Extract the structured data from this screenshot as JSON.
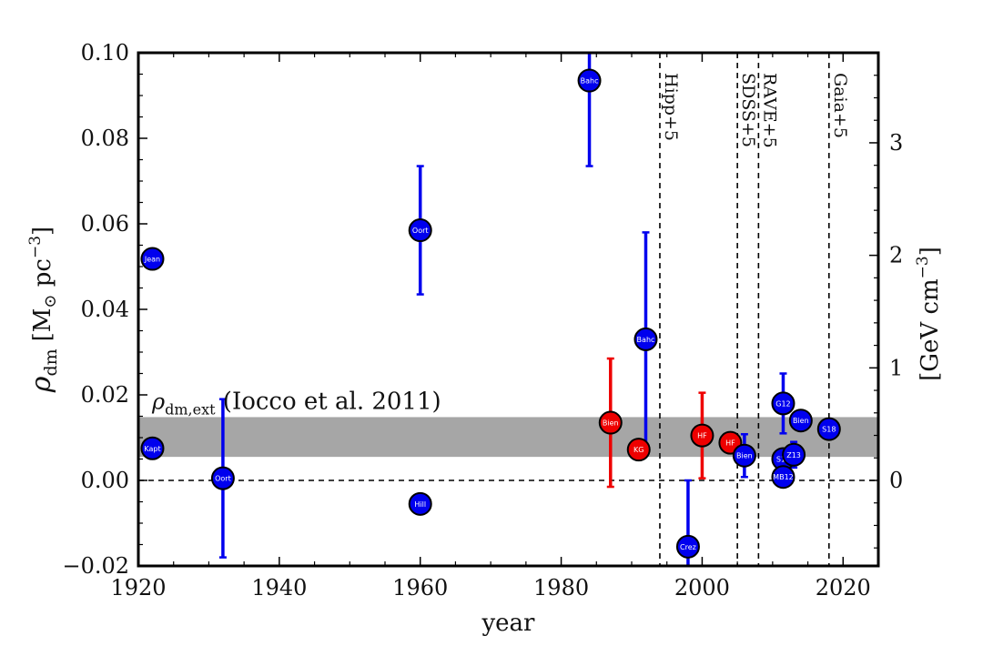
{
  "chart_data": {
    "type": "scatter",
    "x_axis": {
      "label": "year",
      "range": [
        1920,
        2025
      ],
      "ticks": [
        1920,
        1940,
        1960,
        1980,
        2000,
        2020
      ],
      "tick_labels": [
        "1920",
        "1940",
        "1960",
        "1980",
        "2000",
        "2020"
      ]
    },
    "y_axis_left": {
      "label_main": "ρ",
      "label_sub": "dm",
      "label_units": "[M",
      "label_units_sub": "⊙",
      "label_units_tail": " pc",
      "label_units_exp": "−3",
      "label_units_close": "]",
      "range": [
        -0.02,
        0.1
      ],
      "ticks": [
        -0.02,
        0.0,
        0.02,
        0.04,
        0.06,
        0.08,
        0.1
      ],
      "tick_labels": [
        "−0.02",
        "0.00",
        "0.02",
        "0.04",
        "0.06",
        "0.08",
        "0.10"
      ]
    },
    "y_axis_right": {
      "label_main": "[GeV cm",
      "label_exp": "−3",
      "label_close": "]",
      "conversion_per_Msun_pc3": 38.0,
      "ticks": [
        0,
        1,
        2,
        3
      ],
      "tick_labels": [
        "0",
        "1",
        "2",
        "3"
      ]
    },
    "band": {
      "ymin": 0.0055,
      "ymax": 0.0148,
      "label_main": "ρ",
      "label_sub": "dm,ext",
      "label_rest": " (Iocco et al. 2011)",
      "color": "#a6a6a6"
    },
    "zero_line": 0.0,
    "vertical_lines": [
      {
        "x": 1994,
        "label": "Hipp+5"
      },
      {
        "x": 2005,
        "label": "SDSS+5"
      },
      {
        "x": 2008,
        "label": "RAVE+5"
      },
      {
        "x": 2018,
        "label": "Gaia+5"
      }
    ],
    "colors": {
      "blue": "#0000ee",
      "red": "#ee0000"
    },
    "points": [
      {
        "label": "Jean",
        "x": 1922,
        "y": 0.0518,
        "color": "blue"
      },
      {
        "label": "Kapt",
        "x": 1922,
        "y": 0.0075,
        "color": "blue"
      },
      {
        "label": "Oort",
        "x": 1932,
        "y": 0.0005,
        "err_low": 0.0185,
        "err_high": 0.0185,
        "color": "blue"
      },
      {
        "label": "Oort",
        "x": 1960,
        "y": 0.0585,
        "err_low": 0.015,
        "err_high": 0.015,
        "color": "blue"
      },
      {
        "label": "Hill",
        "x": 1960,
        "y": -0.0055,
        "color": "blue"
      },
      {
        "label": "Bahc",
        "x": 1984,
        "y": 0.0935,
        "err_low": 0.02,
        "err_high": 0.02,
        "color": "blue"
      },
      {
        "label": "Bien",
        "x": 1987,
        "y": 0.0135,
        "err_low": 0.015,
        "err_high": 0.015,
        "color": "red"
      },
      {
        "label": "KG",
        "x": 1991,
        "y": 0.0072,
        "color": "red"
      },
      {
        "label": "Bahc",
        "x": 1992,
        "y": 0.033,
        "err_low": 0.025,
        "err_high": 0.025,
        "color": "blue"
      },
      {
        "label": "Crez",
        "x": 1998,
        "y": -0.0155,
        "err_low": 0.0155,
        "err_high": 0.0155,
        "color": "blue"
      },
      {
        "label": "HF",
        "x": 2000,
        "y": 0.0105,
        "err_low": 0.01,
        "err_high": 0.01,
        "color": "red"
      },
      {
        "label": "HF",
        "x": 2004,
        "y": 0.0088,
        "color": "red"
      },
      {
        "label": "Bien",
        "x": 2006,
        "y": 0.0058,
        "err_low": 0.005,
        "err_high": 0.005,
        "color": "blue"
      },
      {
        "label": "G12",
        "x": 2011.5,
        "y": 0.018,
        "err_low": 0.007,
        "err_high": 0.007,
        "color": "blue"
      },
      {
        "label": "S12",
        "x": 2011.5,
        "y": 0.005,
        "color": "blue"
      },
      {
        "label": "MB12",
        "x": 2011.5,
        "y": 0.0008,
        "color": "blue"
      },
      {
        "label": "Z13",
        "x": 2013,
        "y": 0.006,
        "err_low": 0.003,
        "err_high": 0.003,
        "color": "blue"
      },
      {
        "label": "Bien",
        "x": 2014,
        "y": 0.014,
        "color": "blue"
      },
      {
        "label": "S18",
        "x": 2018,
        "y": 0.012,
        "color": "blue"
      }
    ]
  }
}
